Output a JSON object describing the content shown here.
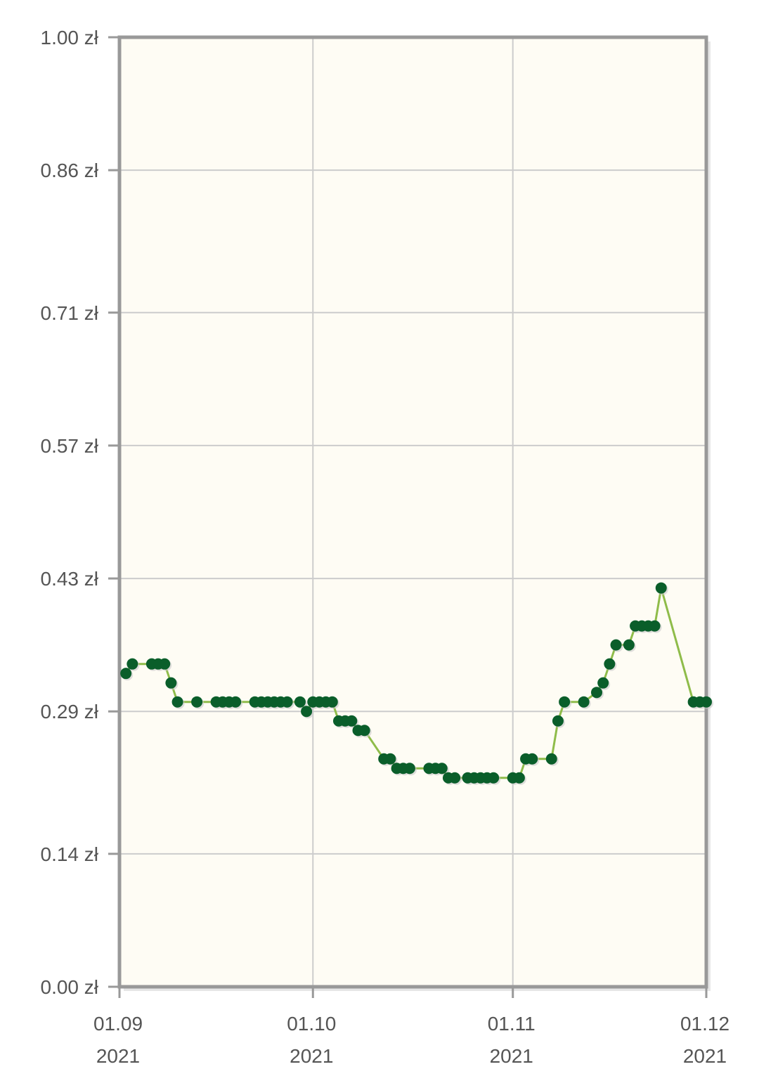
{
  "chart_data": {
    "type": "line",
    "title": "",
    "xlabel": "",
    "ylabel": "",
    "x_ticks": [
      {
        "date": "2021-09-01",
        "line1": "01.09",
        "line2": "2021"
      },
      {
        "date": "2021-10-01",
        "line1": "01.10",
        "line2": "2021"
      },
      {
        "date": "2021-11-01",
        "line1": "01.11",
        "line2": "2021"
      },
      {
        "date": "2021-12-01",
        "line1": "01.12",
        "line2": "2021"
      }
    ],
    "y_ticks": [
      {
        "value": 0.0,
        "label": "0.00 zł"
      },
      {
        "value": 0.14,
        "label": "0.14 zł"
      },
      {
        "value": 0.29,
        "label": "0.29 zł"
      },
      {
        "value": 0.43,
        "label": "0.43 zł"
      },
      {
        "value": 0.57,
        "label": "0.57 zł"
      },
      {
        "value": 0.71,
        "label": "0.71 zł"
      },
      {
        "value": 0.86,
        "label": "0.86 zł"
      },
      {
        "value": 1.0,
        "label": "1.00 zł"
      }
    ],
    "xlim": [
      "2021-09-01",
      "2021-12-01"
    ],
    "ylim": [
      0,
      1.0
    ],
    "grid": true,
    "colors": {
      "plot_background": "#fefcf4",
      "frame": "#999999",
      "grid": "#cccccc",
      "line": "#8fbc4a",
      "marker": "#0a5e2a"
    },
    "series": [
      {
        "x": [
          "2021-09-02",
          "2021-09-03",
          "2021-09-06",
          "2021-09-07",
          "2021-09-08",
          "2021-09-09",
          "2021-09-10",
          "2021-09-13",
          "2021-09-16",
          "2021-09-17",
          "2021-09-18",
          "2021-09-19",
          "2021-09-22",
          "2021-09-23",
          "2021-09-24",
          "2021-09-25",
          "2021-09-26",
          "2021-09-27",
          "2021-09-29",
          "2021-09-30",
          "2021-10-01",
          "2021-10-02",
          "2021-10-03",
          "2021-10-04",
          "2021-10-05",
          "2021-10-06",
          "2021-10-07",
          "2021-10-08",
          "2021-10-09",
          "2021-10-12",
          "2021-10-13",
          "2021-10-14",
          "2021-10-15",
          "2021-10-16",
          "2021-10-19",
          "2021-10-20",
          "2021-10-21",
          "2021-10-22",
          "2021-10-23",
          "2021-10-25",
          "2021-10-26",
          "2021-10-27",
          "2021-10-28",
          "2021-10-29",
          "2021-11-01",
          "2021-11-02",
          "2021-11-03",
          "2021-11-04",
          "2021-11-07",
          "2021-11-08",
          "2021-11-09",
          "2021-11-12",
          "2021-11-14",
          "2021-11-15",
          "2021-11-16",
          "2021-11-17",
          "2021-11-19",
          "2021-11-20",
          "2021-11-21",
          "2021-11-22",
          "2021-11-23",
          "2021-11-24",
          "2021-11-29",
          "2021-11-30",
          "2021-12-01"
        ],
        "y": [
          0.33,
          0.34,
          0.34,
          0.34,
          0.34,
          0.32,
          0.3,
          0.3,
          0.3,
          0.3,
          0.3,
          0.3,
          0.3,
          0.3,
          0.3,
          0.3,
          0.3,
          0.3,
          0.3,
          0.29,
          0.3,
          0.3,
          0.3,
          0.3,
          0.28,
          0.28,
          0.28,
          0.27,
          0.27,
          0.24,
          0.24,
          0.23,
          0.23,
          0.23,
          0.23,
          0.23,
          0.23,
          0.22,
          0.22,
          0.22,
          0.22,
          0.22,
          0.22,
          0.22,
          0.22,
          0.22,
          0.24,
          0.24,
          0.24,
          0.28,
          0.3,
          0.3,
          0.31,
          0.32,
          0.34,
          0.36,
          0.36,
          0.38,
          0.38,
          0.38,
          0.38,
          0.42,
          0.3,
          0.3,
          0.3
        ]
      }
    ]
  }
}
